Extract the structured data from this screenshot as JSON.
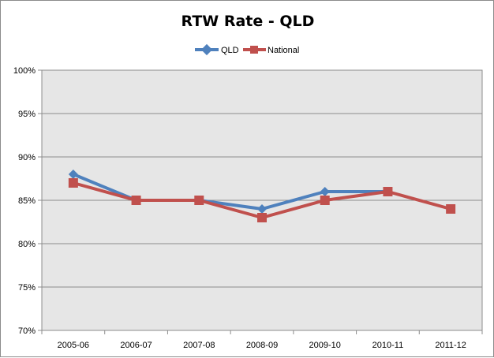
{
  "chart_data": {
    "type": "line",
    "title": "RTW Rate - QLD",
    "xlabel": "",
    "ylabel": "",
    "categories": [
      "2005-06",
      "2006-07",
      "2007-08",
      "2008-09",
      "2009-10",
      "2010-11",
      "2011-12"
    ],
    "ylim": [
      70,
      100
    ],
    "y_ticks": [
      70,
      75,
      80,
      85,
      90,
      95,
      100
    ],
    "y_tick_labels": [
      "70%",
      "75%",
      "80%",
      "85%",
      "90%",
      "95%",
      "100%"
    ],
    "grid": "horizontal",
    "legend_position": "top",
    "plot_background": "#e6e6e6",
    "series": [
      {
        "name": "QLD",
        "values": [
          88,
          85,
          85,
          84,
          86,
          86,
          null
        ],
        "color": "#4f81bd",
        "marker": "diamond"
      },
      {
        "name": "National",
        "values": [
          87,
          85,
          85,
          83,
          85,
          86,
          84
        ],
        "color": "#c0504d",
        "marker": "square"
      }
    ]
  }
}
